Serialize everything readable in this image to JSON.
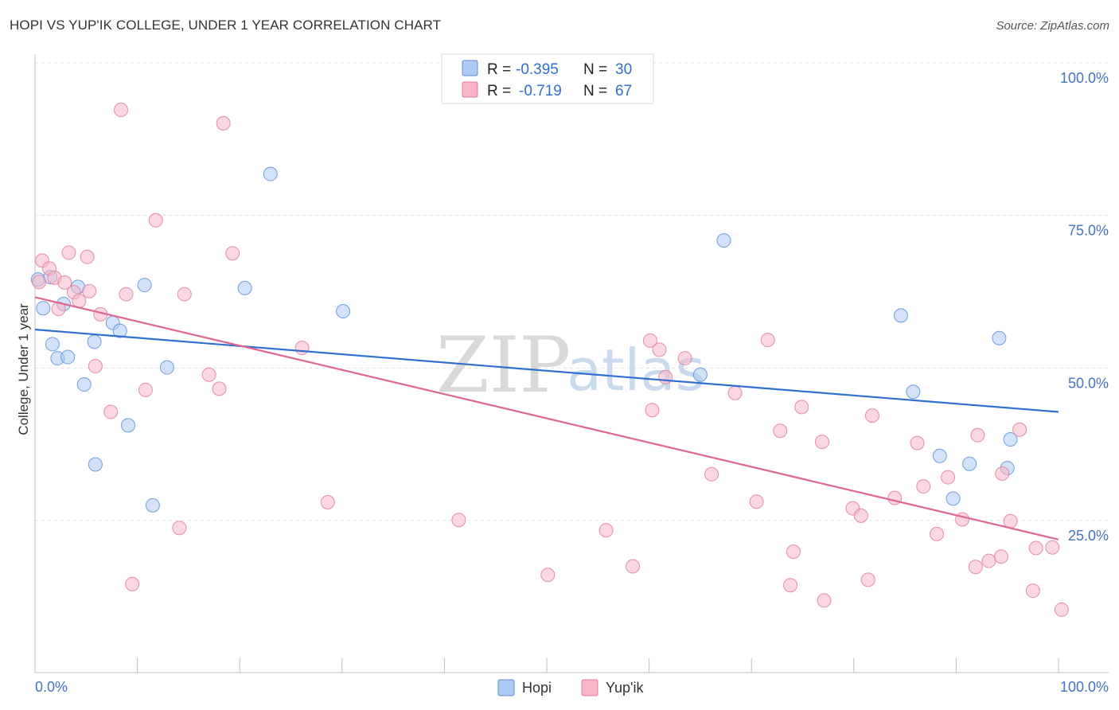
{
  "title": "HOPI VS YUP'IK COLLEGE, UNDER 1 YEAR CORRELATION CHART",
  "source": "Source: ZipAtlas.com",
  "watermark": {
    "zip": "ZIP",
    "atlas": "atlas"
  },
  "chart_data": {
    "type": "scatter",
    "ylabel": "College, Under 1 year",
    "xlabel": "",
    "xlim": [
      0,
      100
    ],
    "ylim": [
      0,
      104
    ],
    "x_tick_labels": {
      "left": "0.0%",
      "right": "100.0%"
    },
    "y_ticks": [
      {
        "value": 100,
        "label": "100.0%"
      },
      {
        "value": 75,
        "label": "75.0%"
      },
      {
        "value": 50,
        "label": "50.0%"
      },
      {
        "value": 25,
        "label": "25.0%"
      }
    ],
    "legend_box": [
      {
        "r_label": "R = ",
        "r_value": "-0.395",
        "n_label": "N = ",
        "n_value": "30",
        "color": "#aecbf3"
      },
      {
        "r_label": "R = ",
        "r_value": "-0.719",
        "n_label": "N = ",
        "n_value": "67",
        "color": "#f7b6c8"
      }
    ],
    "series": [
      {
        "name": "Hopi",
        "color": "#aecbf3",
        "edge": "#5b8fd6",
        "line_color": "#2f6fd0",
        "trend": {
          "x0": 0,
          "y0": 56.3,
          "x1": 100,
          "y1": 42.8
        },
        "points": [
          [
            0.3,
            64.5
          ],
          [
            0.8,
            59.8
          ],
          [
            1.5,
            64.9
          ],
          [
            1.7,
            53.9
          ],
          [
            2.2,
            51.6
          ],
          [
            2.8,
            60.5
          ],
          [
            3.2,
            51.8
          ],
          [
            4.2,
            63.3
          ],
          [
            4.8,
            47.3
          ],
          [
            5.8,
            54.3
          ],
          [
            5.9,
            34.2
          ],
          [
            7.6,
            57.4
          ],
          [
            8.3,
            56.1
          ],
          [
            9.1,
            40.6
          ],
          [
            10.7,
            63.6
          ],
          [
            11.5,
            27.5
          ],
          [
            12.9,
            50.1
          ],
          [
            20.5,
            63.1
          ],
          [
            23.0,
            81.8
          ],
          [
            30.1,
            59.3
          ],
          [
            65.0,
            48.9
          ],
          [
            67.3,
            70.9
          ],
          [
            84.6,
            58.6
          ],
          [
            85.8,
            46.1
          ],
          [
            88.4,
            35.6
          ],
          [
            89.7,
            28.6
          ],
          [
            91.3,
            34.3
          ],
          [
            94.2,
            54.9
          ],
          [
            95.0,
            33.6
          ],
          [
            95.3,
            38.3
          ]
        ]
      },
      {
        "name": "Yup'ik",
        "color": "#f7b6c8",
        "edge": "#e07b9c",
        "line_color": "#e06590",
        "trend": {
          "x0": 0,
          "y0": 61.6,
          "x1": 100,
          "y1": 21.9
        },
        "points": [
          [
            0.4,
            64.1
          ],
          [
            0.7,
            67.6
          ],
          [
            1.4,
            66.3
          ],
          [
            1.9,
            64.8
          ],
          [
            2.3,
            59.7
          ],
          [
            2.9,
            64.0
          ],
          [
            3.3,
            68.9
          ],
          [
            3.8,
            62.4
          ],
          [
            4.3,
            61.0
          ],
          [
            5.1,
            68.2
          ],
          [
            5.3,
            62.6
          ],
          [
            5.9,
            50.3
          ],
          [
            6.4,
            58.8
          ],
          [
            7.4,
            42.8
          ],
          [
            8.4,
            92.3
          ],
          [
            8.9,
            62.1
          ],
          [
            9.5,
            14.6
          ],
          [
            10.8,
            46.4
          ],
          [
            11.8,
            74.2
          ],
          [
            14.1,
            23.8
          ],
          [
            14.6,
            62.1
          ],
          [
            17.0,
            48.9
          ],
          [
            18.0,
            46.6
          ],
          [
            18.4,
            90.1
          ],
          [
            19.3,
            68.8
          ],
          [
            26.1,
            53.3
          ],
          [
            28.6,
            28.0
          ],
          [
            41.4,
            25.1
          ],
          [
            50.1,
            16.1
          ],
          [
            55.8,
            23.4
          ],
          [
            58.4,
            17.5
          ],
          [
            60.1,
            54.5
          ],
          [
            60.3,
            43.1
          ],
          [
            61.0,
            53.0
          ],
          [
            61.6,
            48.5
          ],
          [
            63.5,
            51.6
          ],
          [
            66.1,
            32.6
          ],
          [
            68.4,
            45.9
          ],
          [
            70.5,
            28.1
          ],
          [
            71.6,
            54.6
          ],
          [
            72.8,
            39.7
          ],
          [
            73.8,
            14.4
          ],
          [
            74.1,
            19.9
          ],
          [
            74.9,
            43.6
          ],
          [
            76.9,
            37.9
          ],
          [
            77.1,
            11.9
          ],
          [
            79.9,
            27.0
          ],
          [
            80.7,
            25.8
          ],
          [
            81.4,
            15.3
          ],
          [
            81.8,
            42.2
          ],
          [
            84.0,
            28.7
          ],
          [
            86.2,
            37.7
          ],
          [
            86.8,
            30.6
          ],
          [
            88.1,
            22.8
          ],
          [
            89.2,
            32.1
          ],
          [
            90.6,
            25.2
          ],
          [
            91.9,
            17.4
          ],
          [
            92.1,
            39.0
          ],
          [
            93.2,
            18.4
          ],
          [
            94.4,
            19.1
          ],
          [
            94.5,
            32.7
          ],
          [
            95.3,
            24.9
          ],
          [
            96.2,
            39.9
          ],
          [
            97.5,
            13.5
          ],
          [
            97.8,
            20.5
          ],
          [
            99.4,
            20.6
          ],
          [
            100.3,
            10.4
          ]
        ]
      }
    ]
  }
}
